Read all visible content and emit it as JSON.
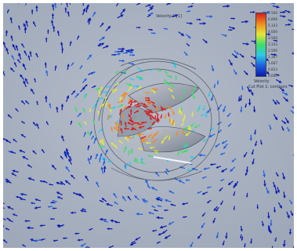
{
  "scene": {
    "description_caption": "",
    "background_color": "#a9b2c0",
    "vector_field_colormap": [
      "#0a1bb0",
      "#1e5fe0",
      "#2ec8e8",
      "#3fdc6a",
      "#e6e63a",
      "#f08c1e",
      "#d81e1e"
    ]
  },
  "legend": {
    "ticks": [
      "7.500",
      "6.896",
      "5.333",
      "4.600",
      "3.500",
      "3.333",
      "2.500",
      "2.167",
      "1.667",
      "0.833",
      "0.000"
    ],
    "unit": "Velocity",
    "gradient_colors": [
      "#d81e1e",
      "#f08c1e",
      "#e6e63a",
      "#3fdc6a",
      "#2ec8e8",
      "#1e5fe0",
      "#0a1bb0"
    ]
  },
  "annotations": {
    "top_label": "Velocity 1 [1]",
    "side_label_1": "Velocity",
    "side_label_2": "Cut Plot 1: contours"
  }
}
